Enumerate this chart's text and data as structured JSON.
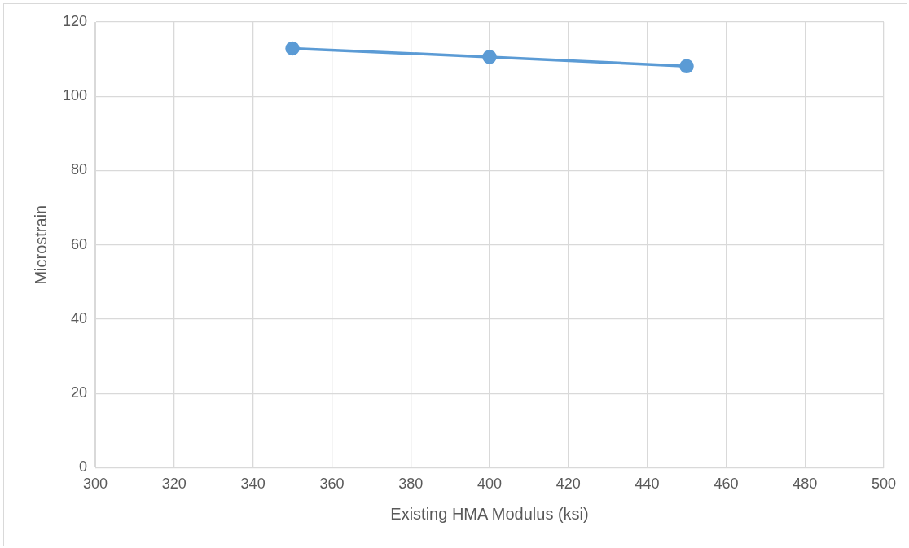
{
  "chart_data": {
    "type": "line",
    "xlabel": "Existing HMA Modulus (ksi)",
    "ylabel": "Microstrain",
    "x": [
      350,
      400,
      450
    ],
    "series": [
      {
        "color": "#5b9bd5",
        "values": [
          112.9,
          110.6,
          108.1
        ]
      }
    ],
    "xlim": [
      300,
      500
    ],
    "xticks": [
      300,
      320,
      340,
      360,
      380,
      400,
      420,
      440,
      460,
      480,
      500
    ],
    "ylim": [
      0,
      120
    ],
    "yticks": [
      0,
      20,
      40,
      60,
      80,
      100,
      120
    ],
    "grid": true,
    "legend": false,
    "marker": "circle",
    "line_style": "solid"
  }
}
